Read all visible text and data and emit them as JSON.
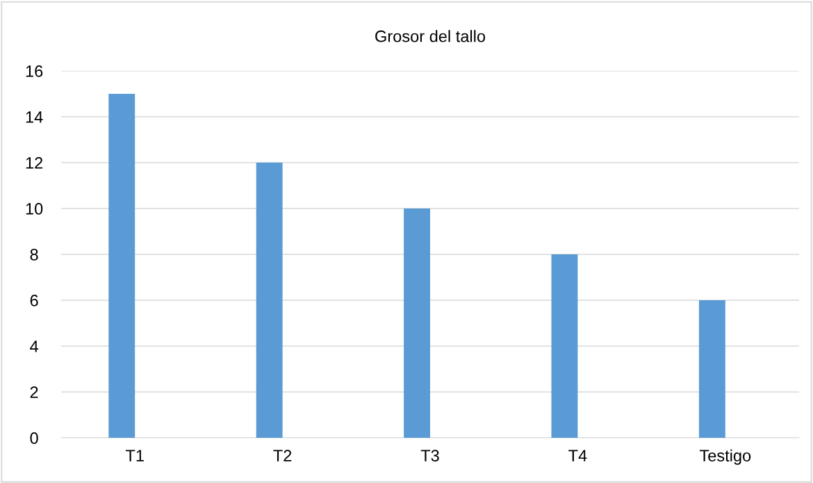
{
  "chart_data": {
    "type": "bar",
    "title": "Grosor del tallo",
    "categories": [
      "T1",
      "T2",
      "T3",
      "T4",
      "Testigo"
    ],
    "series": [
      {
        "color": "#5b9bd5",
        "values": [
          15,
          12,
          10,
          8,
          6
        ]
      },
      {
        "values": [
          null,
          null,
          null,
          null,
          null
        ]
      }
    ],
    "ylim": [
      0,
      16
    ],
    "yticks": [
      0,
      2,
      4,
      6,
      8,
      10,
      12,
      14,
      16
    ],
    "grid": "y",
    "legend": false
  }
}
